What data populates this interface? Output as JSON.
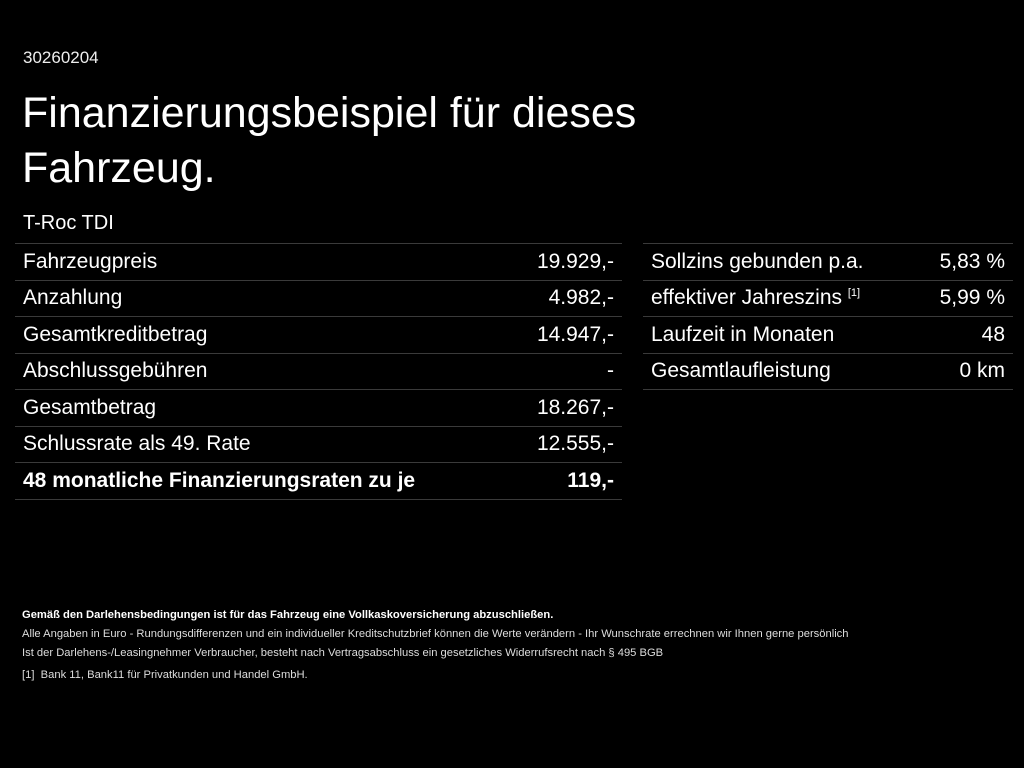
{
  "code": "30260204",
  "title": "Finanzierungsbeispiel für dieses Fahrzeug.",
  "model": "T-Roc TDI",
  "left_rows": [
    {
      "label": "Fahrzeugpreis",
      "value": "19.929,-"
    },
    {
      "label": "Anzahlung",
      "value": "4.982,-"
    },
    {
      "label": "Gesamtkreditbetrag",
      "value": "14.947,-"
    },
    {
      "label": "Abschlussgebühren",
      "value": "-"
    },
    {
      "label": "Gesamtbetrag",
      "value": "18.267,-"
    },
    {
      "label": "Schlussrate als 49. Rate",
      "value": "12.555,-"
    },
    {
      "label": "48 monatliche Finanzierungsraten zu je",
      "value": "119,-"
    }
  ],
  "right_rows": [
    {
      "label": "Sollzins gebunden p.a.",
      "sup": "",
      "value": "5,83 %"
    },
    {
      "label": "effektiver Jahreszins",
      "sup": "[1]",
      "value": "5,99 %"
    },
    {
      "label": "Laufzeit in Monaten",
      "sup": "",
      "value": "48"
    },
    {
      "label": "Gesamtlaufleistung",
      "sup": "",
      "value": "0 km"
    }
  ],
  "footer": {
    "bold": "Gemäß den Darlehensbedingungen ist für das Fahrzeug eine Vollkaskoversicherung abzuschließen.",
    "line1": "Alle Angaben in Euro - Rundungsdifferenzen und ein individueller Kreditschutzbrief können die Werte verändern - Ihr Wunschrate errechnen wir Ihnen gerne persönlich",
    "line2": "Ist der Darlehens-/Leasingnehmer Verbraucher, besteht nach Vertragsabschluss ein gesetzliches Widerrufsrecht nach § 495 BGB",
    "fn_mark": "[1]",
    "fn_text": "Bank 11, Bank11 für Privatkunden und Handel GmbH."
  }
}
